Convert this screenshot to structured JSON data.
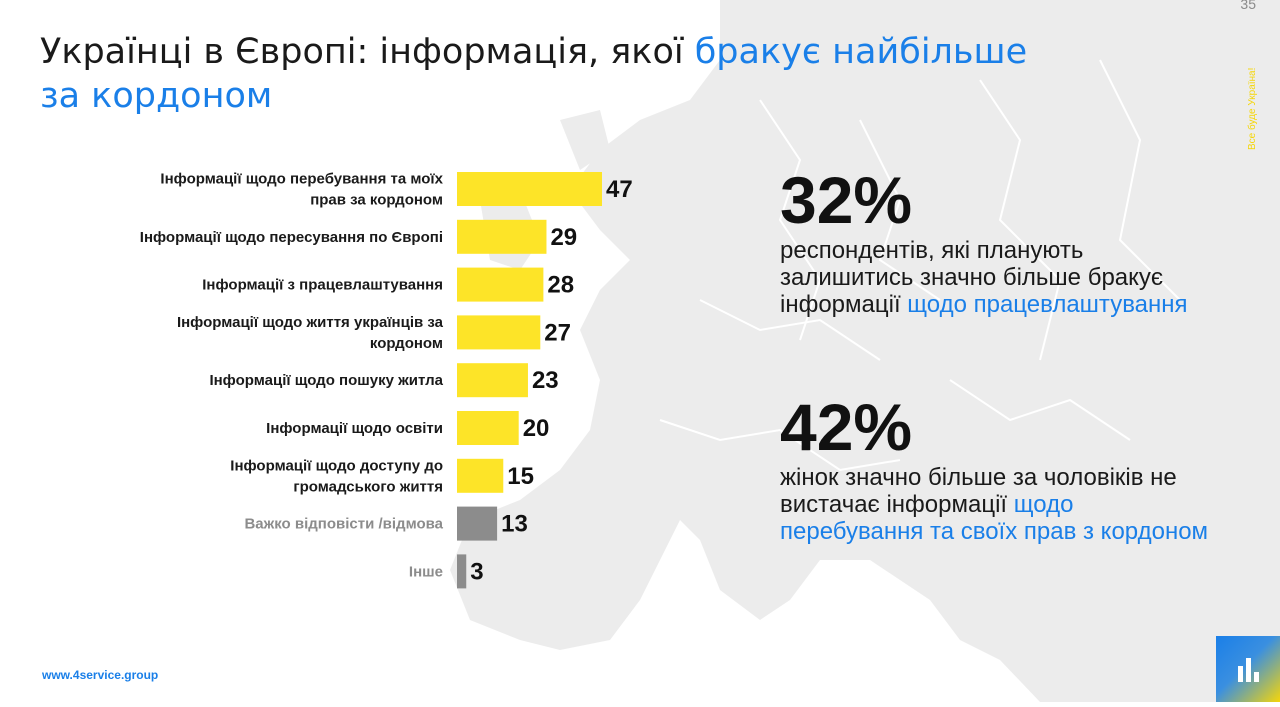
{
  "page_number": "35",
  "slogan": "Все буде Україна!",
  "title": {
    "part1": "Українці в Європі: інформація, якої ",
    "accent_line1": "бракує найбільше",
    "accent_line2": "за кордоном"
  },
  "chart_data": {
    "type": "bar",
    "orientation": "horizontal",
    "categories": [
      [
        "Інформації щодо перебування та моїх",
        "прав за кордоном"
      ],
      [
        "Інформації щодо пересування по Європі"
      ],
      [
        "Інформації з працевлаштування"
      ],
      [
        "Інформації щодо життя українців за",
        "кордоном"
      ],
      [
        "Інформації щодо пошуку житла"
      ],
      [
        "Інформації щодо освіти"
      ],
      [
        "Інформації щодо доступу до",
        "громадського життя"
      ],
      [
        "Важко відповісти /відмова"
      ],
      [
        "Інше"
      ]
    ],
    "values": [
      47,
      29,
      28,
      27,
      23,
      20,
      15,
      13,
      3
    ],
    "value_labels": [
      "47",
      "29",
      "28",
      "27",
      "23",
      "20",
      "15",
      "13",
      "3"
    ],
    "bar_colors": [
      "#fde428",
      "#fde428",
      "#fde428",
      "#fde428",
      "#fde428",
      "#fde428",
      "#fde428",
      "#8c8c8c",
      "#8c8c8c"
    ],
    "label_colors": [
      "#1a1a1a",
      "#1a1a1a",
      "#1a1a1a",
      "#1a1a1a",
      "#1a1a1a",
      "#1a1a1a",
      "#1a1a1a",
      "#8c8c8c",
      "#8c8c8c"
    ],
    "xlim": [
      0,
      50
    ],
    "grid": false,
    "legend": "none"
  },
  "stats": [
    {
      "value": "32%",
      "text": "респондентів, які планують залишитись значно більше бракує інформації ",
      "accent": "щодо працевлаштування"
    },
    {
      "value": "42%",
      "text": "жінок значно більше за чоловіків не вистачає інформації ",
      "accent": "щодо перебування та своїх прав з кордоном"
    }
  ],
  "footer": {
    "website": "www.4service.group"
  },
  "colors": {
    "accent": "#1a7fe8",
    "bar": "#fde428",
    "muted_bar": "#8c8c8c",
    "map": "#ececec"
  },
  "icons": {
    "logo": "bar-chart-logo-icon"
  }
}
